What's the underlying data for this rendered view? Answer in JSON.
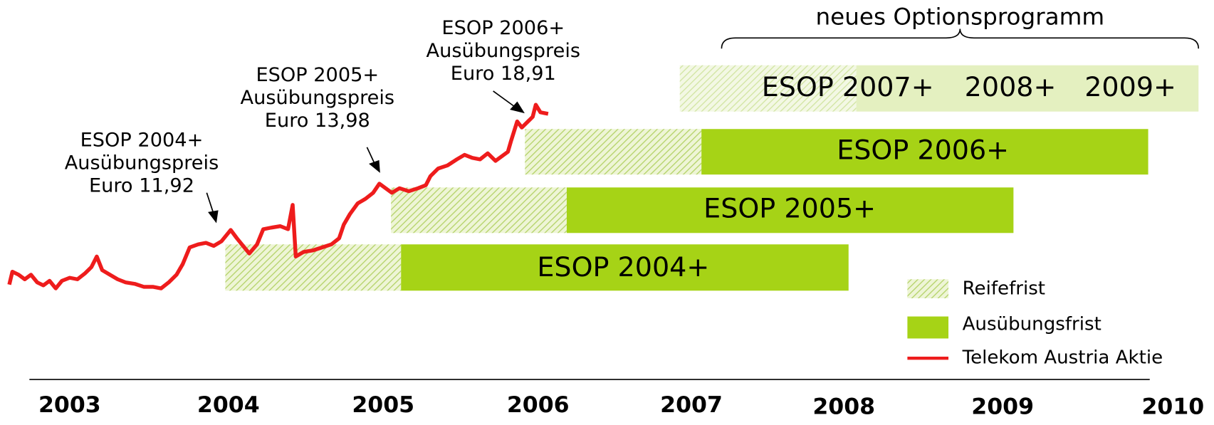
{
  "heading": "neues Optionsprogramm",
  "programs": [
    {
      "label": "ESOP 2004+"
    },
    {
      "label": "ESOP 2005+"
    },
    {
      "label": "ESOP 2006+"
    }
  ],
  "new_program": {
    "labels": [
      "ESOP 2007+",
      "2008+",
      "2009+"
    ]
  },
  "annotations": [
    {
      "lines": [
        "ESOP 2004+",
        "Ausübungspreis",
        "Euro 11,92"
      ]
    },
    {
      "lines": [
        "ESOP 2005+",
        "Ausübungspreis",
        "Euro 13,98"
      ]
    },
    {
      "lines": [
        "ESOP 2006+",
        "Ausübungspreis",
        "Euro 18,91"
      ]
    }
  ],
  "legend": [
    "Reifefrist",
    "Ausübungsfrist",
    "Telekom Austria Aktie"
  ],
  "timeline": {
    "years": [
      "2003",
      "2004",
      "2005",
      "2006",
      "2007",
      "2008",
      "2009",
      "2010"
    ]
  }
}
